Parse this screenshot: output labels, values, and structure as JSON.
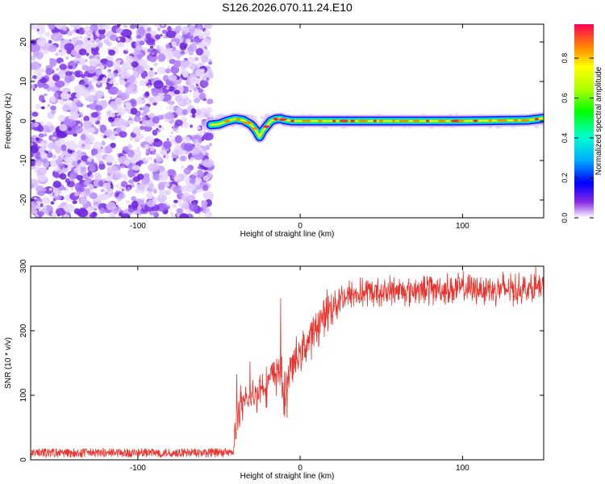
{
  "title": "S126.2026.070.11.24.E10",
  "chart_data": [
    {
      "type": "heatmap",
      "name": "spectrogram",
      "xlabel": "Height of straight line (km)",
      "ylabel": "Frequency (Hz)",
      "xlim": [
        -166,
        150
      ],
      "ylim": [
        -24.5,
        24.5
      ],
      "xticks": [
        -100,
        0,
        100
      ],
      "xtick_labels": [
        "-100",
        "0",
        "100"
      ],
      "yticks": [
        -20,
        -10,
        0,
        10,
        20
      ],
      "ytick_labels": [
        "-20",
        "-10",
        "0",
        "10",
        "20"
      ],
      "noise_region_x": [
        -166,
        -55
      ],
      "signal_region_x": [
        -55,
        150
      ],
      "ridge": {
        "x": [
          -55,
          -50,
          -45,
          -40,
          -35,
          -30,
          -27,
          -25,
          -23,
          -21,
          -18,
          -15,
          -12,
          -10,
          -5,
          0,
          20,
          50,
          100,
          140,
          150
        ],
        "y": [
          -1,
          -0.8,
          0,
          0.5,
          0.2,
          -1,
          -2.5,
          -4,
          -2.5,
          -1.5,
          0,
          0.5,
          0.6,
          0.3,
          0,
          0,
          0,
          0,
          0,
          0.2,
          0.7
        ]
      },
      "colorbar": {
        "label": "Normalized spectral amplitude",
        "range": [
          0,
          0.97
        ],
        "ticks": [
          0,
          0.2,
          0.4,
          0.6,
          0.8
        ],
        "tick_labels": [
          "0.0",
          "0.2",
          "0.4",
          "0.6",
          "0.8"
        ]
      }
    },
    {
      "type": "line",
      "name": "snr",
      "xlabel": "Height of straight line (km)",
      "ylabel": "SNR (10 * v/v)",
      "xlim": [
        -166,
        150
      ],
      "ylim": [
        0,
        300
      ],
      "xticks": [
        -100,
        0,
        100
      ],
      "xtick_labels": [
        "-100",
        "0",
        "100"
      ],
      "yticks": [
        0,
        100,
        200,
        300
      ],
      "ytick_labels": [
        "0",
        "100",
        "200",
        "300"
      ],
      "color": "#e8332d",
      "trend": {
        "x": [
          -166,
          -41,
          -40,
          -39,
          -37,
          -30,
          -25,
          -18,
          -15,
          -12,
          -10,
          -8,
          -5,
          0,
          5,
          10,
          15,
          20,
          25,
          30,
          40,
          60,
          80,
          100,
          120,
          150
        ],
        "y": [
          10,
          10,
          35,
          65,
          80,
          95,
          110,
          125,
          135,
          140,
          95,
          125,
          145,
          165,
          185,
          205,
          225,
          240,
          250,
          255,
          258,
          262,
          265,
          265,
          265,
          265
        ]
      },
      "spikes": [
        {
          "x": -39,
          "y": 133
        },
        {
          "x": -31,
          "y": 152
        },
        {
          "x": -12,
          "y": 250
        },
        {
          "x": -8,
          "y": 65
        },
        {
          "x": -10,
          "y": 70
        },
        {
          "x": 145,
          "y": 300
        }
      ]
    }
  ]
}
